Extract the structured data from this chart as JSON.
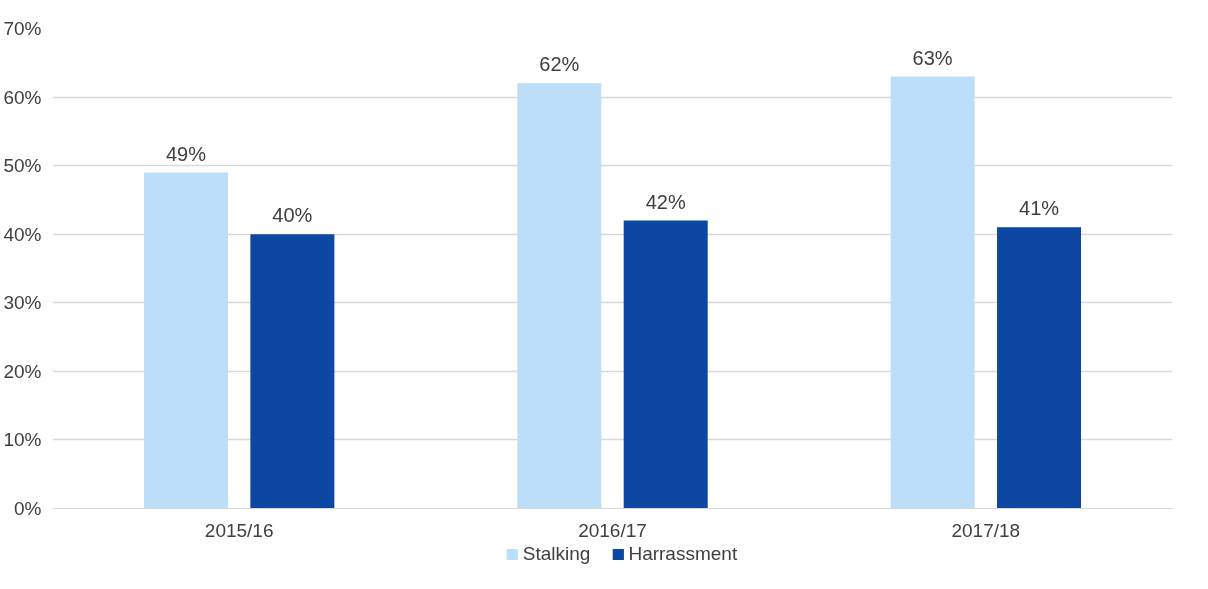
{
  "chart_data": {
    "type": "bar",
    "categories": [
      "2015/16",
      "2016/17",
      "2017/18"
    ],
    "series": [
      {
        "name": "Stalking",
        "color": "#bddef8",
        "values": [
          49,
          62,
          63
        ],
        "value_labels": [
          "49%",
          "62%",
          "63%"
        ]
      },
      {
        "name": "Harrassment",
        "color": "#0d47a1",
        "values": [
          40,
          42,
          41
        ],
        "value_labels": [
          "40%",
          "42%",
          "41%"
        ]
      }
    ],
    "ylim": [
      0,
      70
    ],
    "yticks": [
      {
        "value": 0,
        "label": "0%"
      },
      {
        "value": 10,
        "label": "10%"
      },
      {
        "value": 20,
        "label": "20%"
      },
      {
        "value": 30,
        "label": "30%"
      },
      {
        "value": 40,
        "label": "40%"
      },
      {
        "value": 50,
        "label": "50%"
      },
      {
        "value": 60,
        "label": "60%"
      },
      {
        "value": 70,
        "label": "70%"
      }
    ],
    "grid": "y",
    "legend": "bottom"
  }
}
